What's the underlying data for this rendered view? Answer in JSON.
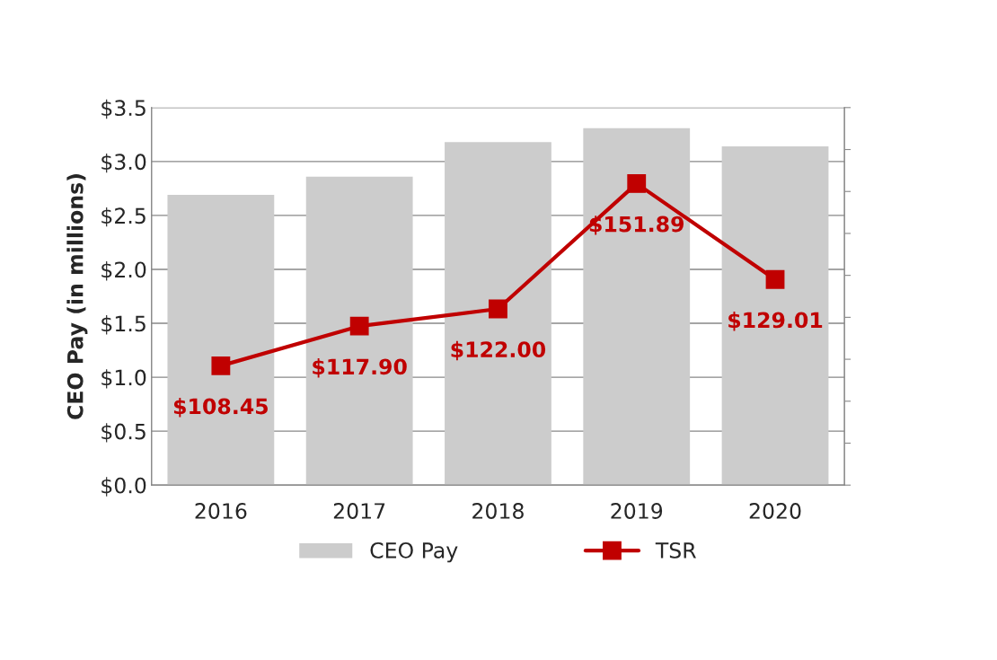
{
  "chart_data": {
    "type": "bar",
    "categories": [
      "2016",
      "2017",
      "2018",
      "2019",
      "2020"
    ],
    "ylabel": "CEO Pay (in millions)",
    "ylim": [
      0,
      3.5
    ],
    "yticks": [
      {
        "value": 0,
        "label": "$0.0"
      },
      {
        "value": 0.5,
        "label": "$0.5"
      },
      {
        "value": 1,
        "label": "$1.0"
      },
      {
        "value": 1.5,
        "label": "$1.5"
      },
      {
        "value": 2,
        "label": "$2.0"
      },
      {
        "value": 2.5,
        "label": "$2.5"
      },
      {
        "value": 3,
        "label": "$3.0"
      },
      {
        "value": 3.5,
        "label": "$3.5"
      }
    ],
    "y2lim": [
      80,
      170
    ],
    "y2ticks": [
      {
        "value": 80,
        "label": null
      },
      {
        "value": 90,
        "label": null
      },
      {
        "value": 100,
        "label": null
      },
      {
        "value": 110,
        "label": null
      },
      {
        "value": 120,
        "label": null
      },
      {
        "value": 130,
        "label": null
      },
      {
        "value": 140,
        "label": null
      },
      {
        "value": 150,
        "label": null
      },
      {
        "value": 160,
        "label": null
      },
      {
        "value": 170,
        "label": null
      }
    ],
    "grid": "y",
    "legend": "bottom",
    "series": [
      {
        "name": "CEO Pay",
        "color": "#cccccc",
        "values": [
          2.69,
          2.86,
          3.18,
          3.31,
          3.14
        ]
      },
      {
        "name": "TSR",
        "type": "line",
        "axis": "y2",
        "color": "#c00000",
        "marker": "square",
        "line_style": "solid",
        "values": [
          108.45,
          117.9,
          122.0,
          151.89,
          129.01
        ],
        "value_labels": [
          "$108.45",
          "$117.90",
          "$122.00",
          "$151.89",
          "$129.01"
        ]
      }
    ]
  }
}
